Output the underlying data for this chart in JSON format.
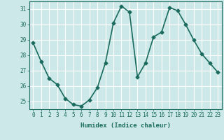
{
  "x": [
    0,
    1,
    2,
    3,
    4,
    5,
    6,
    7,
    8,
    9,
    10,
    11,
    12,
    13,
    14,
    15,
    16,
    17,
    18,
    19,
    20,
    21,
    22,
    23
  ],
  "y": [
    28.8,
    27.6,
    26.5,
    26.1,
    25.2,
    24.8,
    24.7,
    25.1,
    25.9,
    27.5,
    30.1,
    31.2,
    30.8,
    26.6,
    27.5,
    29.2,
    29.5,
    31.1,
    30.9,
    30.0,
    29.0,
    28.1,
    27.5,
    26.9
  ],
  "line_color": "#1a6b5e",
  "marker": "D",
  "marker_size": 2.5,
  "linewidth": 1.2,
  "xlabel": "Humidex (Indice chaleur)",
  "xlim": [
    -0.5,
    23.5
  ],
  "ylim": [
    24.5,
    31.5
  ],
  "yticks": [
    25,
    26,
    27,
    28,
    29,
    30,
    31
  ],
  "xticks": [
    0,
    1,
    2,
    3,
    4,
    5,
    6,
    7,
    8,
    9,
    10,
    11,
    12,
    13,
    14,
    15,
    16,
    17,
    18,
    19,
    20,
    21,
    22,
    23
  ],
  "bg_color": "#cde8e8",
  "grid_color": "#ffffff",
  "tick_color": "#1a6b5e",
  "xlabel_fontsize": 6.5,
  "tick_fontsize": 5.5
}
